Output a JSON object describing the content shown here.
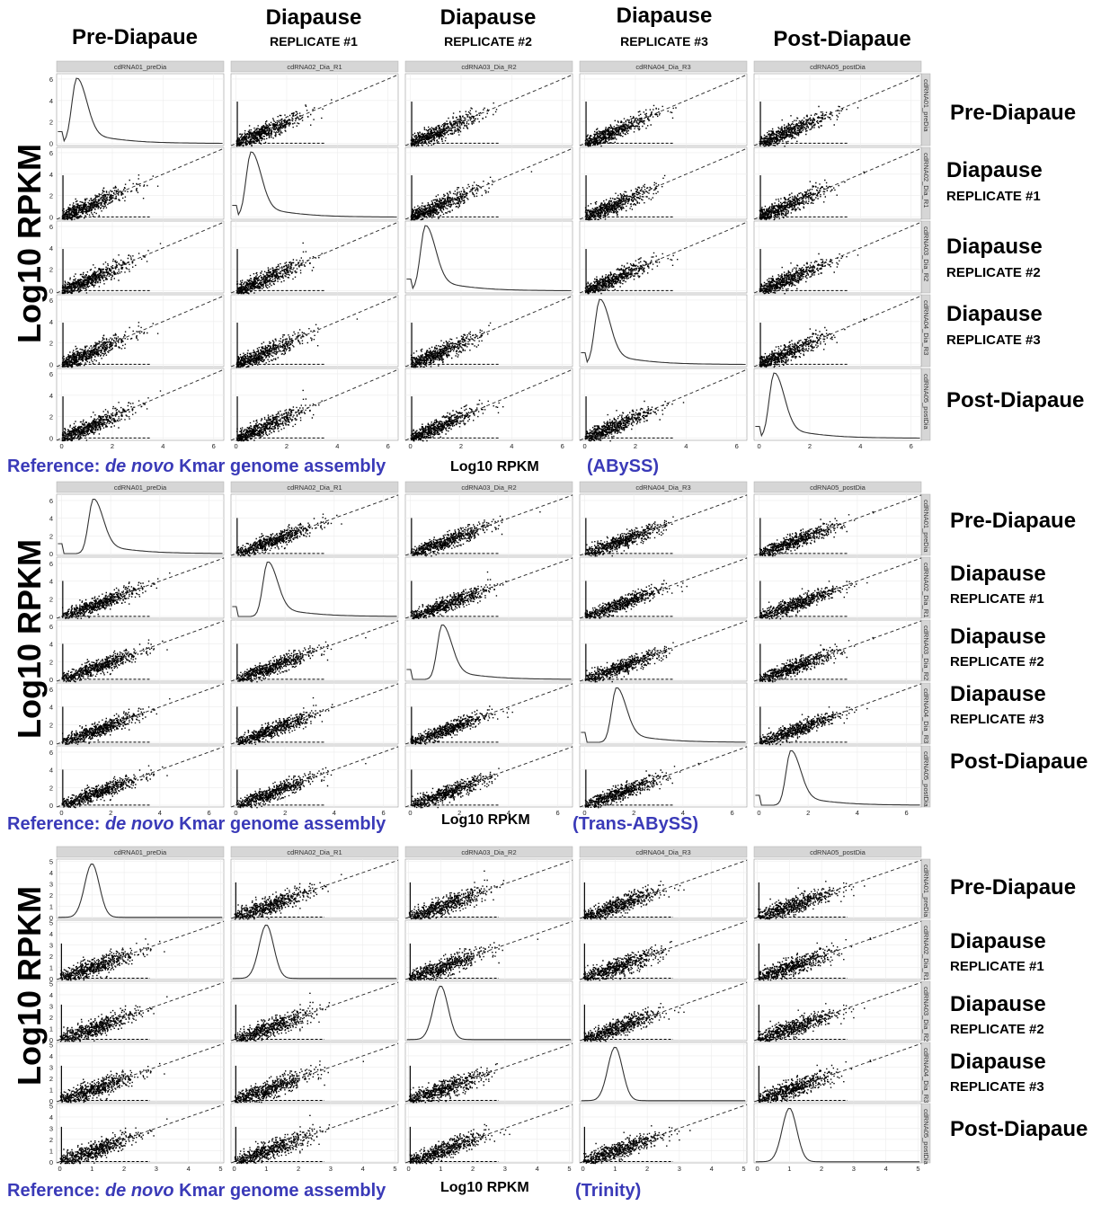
{
  "column_headers": [
    {
      "title": "Pre-Diapaue",
      "sub": ""
    },
    {
      "title": "Diapause",
      "sub": "REPLICATE #1"
    },
    {
      "title": "Diapause",
      "sub": "REPLICATE #2"
    },
    {
      "title": "Diapause",
      "sub": "REPLICATE #3"
    },
    {
      "title": "Post-Diapaue",
      "sub": ""
    }
  ],
  "y_axis_label": "Log10 RPKM",
  "x_axis_label": "Log10 RPKM",
  "reference_prefix": "Reference: ",
  "reference_italic": "de novo",
  "reference_suffix": " Kmar genome assembly",
  "samples": [
    "cdRNA01_preDia",
    "cdRNA02_Dia_R1",
    "cdRNA03_Dia_R2",
    "cdRNA04_Dia_R3",
    "cdRNA05_postDia"
  ],
  "row_labels": [
    {
      "title": "Pre-Diapaue",
      "sub": ""
    },
    {
      "title": "Diapause",
      "sub": "REPLICATE #1"
    },
    {
      "title": "Diapause",
      "sub": "REPLICATE #2"
    },
    {
      "title": "Diapause",
      "sub": "REPLICATE #3"
    },
    {
      "title": "Post-Diapaue",
      "sub": ""
    }
  ],
  "chart_data": [
    {
      "type": "scatter",
      "assembler": "(ABySS)",
      "facets": "5x5 pairwise scatter matrix of Log10 RPKM; diagonal shows density curves",
      "x_ticks": [
        0,
        2,
        4,
        6
      ],
      "y_ticks": [
        0,
        2,
        4,
        6
      ],
      "xlim": [
        -0.2,
        6.4
      ],
      "ylim": [
        -0.2,
        6.5
      ],
      "density_peak_x": 0.6,
      "density_peak_y": 6.1,
      "identity_line": "dashed y = x"
    },
    {
      "type": "scatter",
      "assembler": "(Trans-ABySS)",
      "facets": "5x5 pairwise scatter matrix of Log10 RPKM; diagonal shows density curves",
      "x_ticks": [
        0,
        2,
        4,
        6
      ],
      "y_ticks": [
        0,
        2,
        4,
        6
      ],
      "xlim": [
        -0.2,
        6.6
      ],
      "ylim": [
        -0.2,
        6.7
      ],
      "density_peak_x": 1.3,
      "density_peak_y": 6.2,
      "identity_line": "dashed y = x"
    },
    {
      "type": "scatter",
      "assembler": "(Trinity)",
      "facets": "5x5 pairwise scatter matrix of Log10 RPKM; diagonal shows density curves",
      "x_ticks": [
        0,
        1,
        2,
        3,
        4,
        5
      ],
      "y_ticks": [
        0,
        1,
        2,
        3,
        4,
        5
      ],
      "xlim": [
        -0.1,
        5.1
      ],
      "ylim": [
        -0.1,
        5.2
      ],
      "density_peak_x": 1.0,
      "density_peak_y": 4.8,
      "identity_line": "dashed y = x"
    }
  ]
}
